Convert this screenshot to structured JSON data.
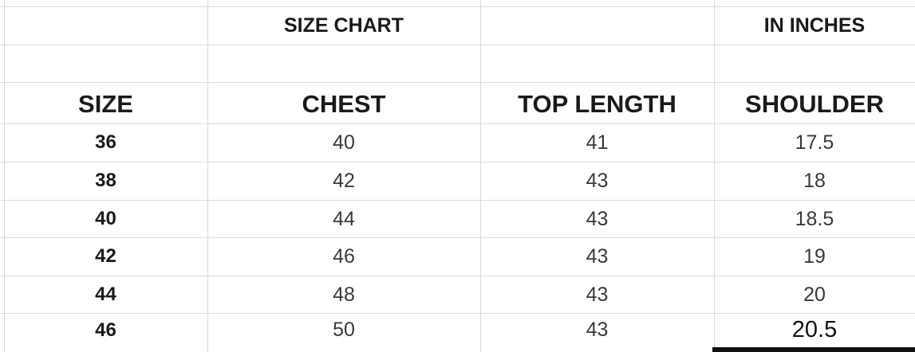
{
  "sheet": {
    "title": "SIZE CHART",
    "unit_note": "IN INCHES",
    "columns": [
      "SIZE",
      "CHEST",
      "TOP LENGTH",
      "SHOULDER"
    ],
    "rows": [
      {
        "size": "36",
        "chest": "40",
        "top_length": "41",
        "shoulder": "17.5"
      },
      {
        "size": "38",
        "chest": "42",
        "top_length": "43",
        "shoulder": "18"
      },
      {
        "size": "40",
        "chest": "44",
        "top_length": "43",
        "shoulder": "18.5"
      },
      {
        "size": "42",
        "chest": "46",
        "top_length": "43",
        "shoulder": "19"
      },
      {
        "size": "44",
        "chest": "48",
        "top_length": "43",
        "shoulder": "20"
      },
      {
        "size": "46",
        "chest": "50",
        "top_length": "43",
        "shoulder": "20.5"
      }
    ]
  }
}
